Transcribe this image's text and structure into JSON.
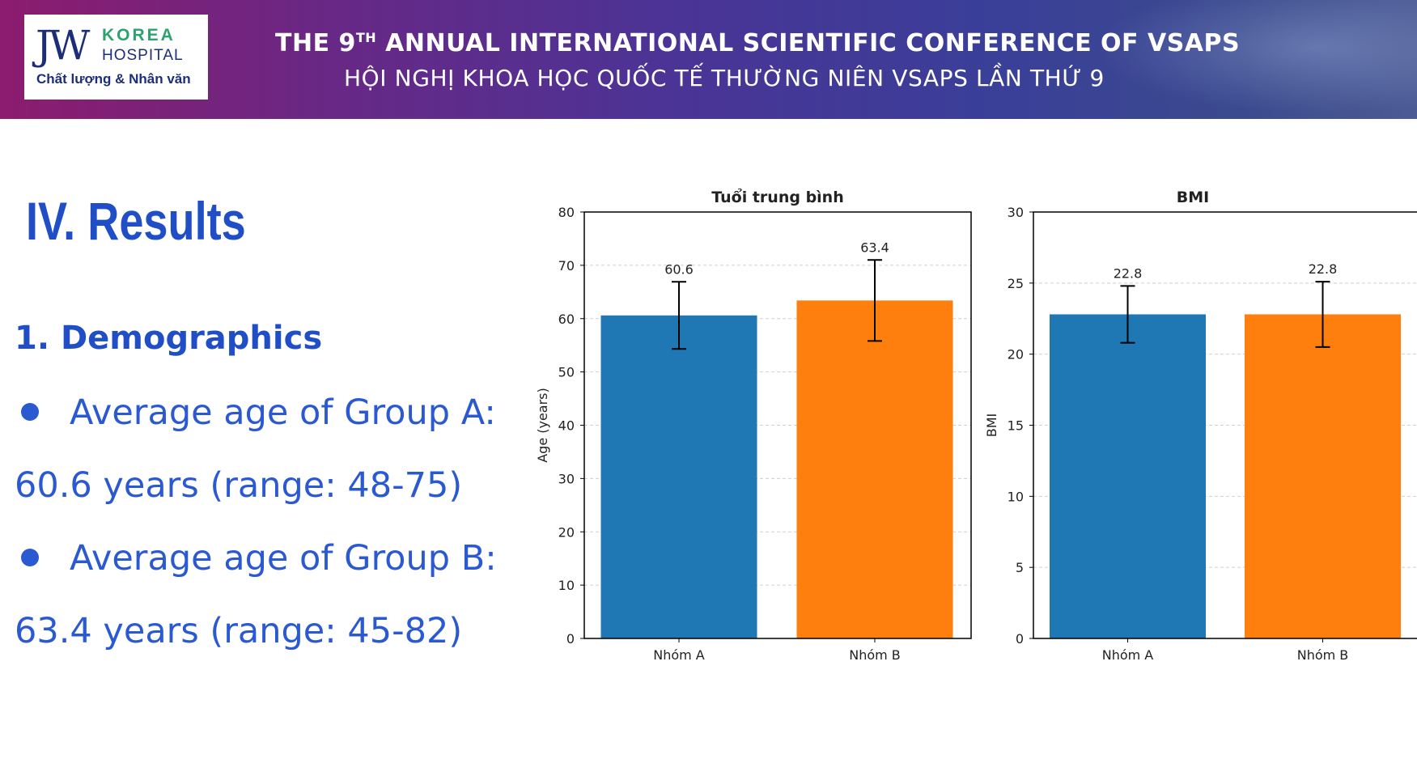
{
  "header": {
    "logo_brand": "JW",
    "logo_korea": "KOREA",
    "logo_hospital": "HOSPITAL",
    "logo_slogan": "Chất lượng & Nhân văn",
    "conference_en_prefix": "THE 9",
    "conference_en_sup": "TH",
    "conference_en_suffix": " ANNUAL INTERNATIONAL SCIENTIFIC CONFERENCE OF VSAPS",
    "conference_vi": "HỘI NGHỊ KHOA HỌC QUỐC TẾ THƯỜNG NIÊN VSAPS LẦN THỨ 9"
  },
  "content": {
    "section_title": "IV. Results",
    "subheading": "1. Demographics",
    "bullets": [
      {
        "line1": "Average age of Group A:",
        "line2": "60.6 years (range: 48-75)"
      },
      {
        "line1": "Average age of Group B:",
        "line2": "63.4 years (range: 45-82)"
      }
    ]
  },
  "colors": {
    "groupA": "#1f77b4",
    "groupB": "#ff7f0e",
    "accent_text": "#2a59d2"
  },
  "chart_data": [
    {
      "type": "bar",
      "title": "Tuổi trung bình",
      "xlabel": "",
      "ylabel": "Age (years)",
      "categories": [
        "Nhóm A",
        "Nhóm B"
      ],
      "values": [
        60.6,
        63.4
      ],
      "value_labels": [
        "60.6",
        "63.4"
      ],
      "error_low": [
        54.3,
        55.8
      ],
      "error_high": [
        66.9,
        71.0
      ],
      "ylim": [
        0,
        80
      ],
      "yticks": [
        0,
        10,
        20,
        30,
        40,
        50,
        60,
        70,
        80
      ],
      "grid": true
    },
    {
      "type": "bar",
      "title": "BMI",
      "xlabel": "",
      "ylabel": "BMI",
      "categories": [
        "Nhóm A",
        "Nhóm B"
      ],
      "values": [
        22.8,
        22.8
      ],
      "value_labels": [
        "22.8",
        "22.8"
      ],
      "error_low": [
        20.8,
        20.5
      ],
      "error_high": [
        24.8,
        25.1
      ],
      "ylim": [
        0,
        30
      ],
      "yticks": [
        0,
        5,
        10,
        15,
        20,
        25,
        30
      ],
      "grid": true
    }
  ]
}
